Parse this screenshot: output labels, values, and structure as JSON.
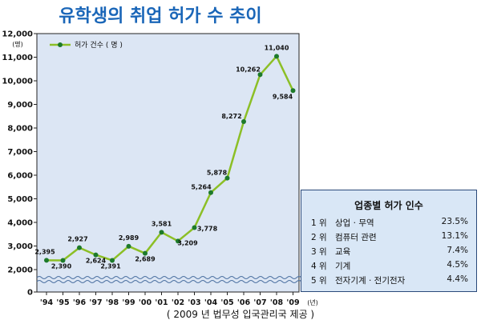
{
  "chart_data": {
    "type": "line",
    "title": "유학생의 취업 허가 수 추이",
    "y_unit": "(명)",
    "x_unit": "(년)",
    "ylim": [
      0,
      12000
    ],
    "yticks": [
      "0",
      "2,000",
      "3,000",
      "4,000",
      "5,000",
      "6,000",
      "7,000",
      "8,000",
      "9,000",
      "10,000",
      "11,000",
      "12,000"
    ],
    "categories": [
      "'94",
      "'95",
      "'96",
      "'97",
      "'98",
      "'99",
      "'00",
      "'01",
      "'02",
      "'03",
      "'04",
      "'05",
      "'06",
      "'07",
      "'08",
      "'09"
    ],
    "series": [
      {
        "name": "허가 건수 ( 명 )",
        "values": [
          2395,
          2390,
          2927,
          2624,
          2391,
          2989,
          2689,
          3581,
          3209,
          3778,
          5264,
          5878,
          8272,
          10262,
          11040,
          9584
        ],
        "labels": [
          "2,395",
          "2,390",
          "2,927",
          "2,624",
          "2,391",
          "2,989",
          "2,689",
          "3,581",
          "3,209",
          "3,778",
          "5,264",
          "5,878",
          "8,272",
          "10,262",
          "11,040",
          "9,584"
        ]
      }
    ],
    "grid": false,
    "legend": "top-left",
    "source": "( 2009 년 법무성 입국관리국 제공 )",
    "colors": {
      "line": "#8cbf26",
      "marker": "#1d7a2a",
      "plot_bg": "#dce6f4",
      "title": "#1a66b8"
    }
  },
  "ranking": {
    "title": "업종별 허가 인수",
    "rows": [
      {
        "rank": "1 위",
        "name": "상업 · 무역",
        "pct": "23.5%"
      },
      {
        "rank": "2 위",
        "name": "컴퓨터 관련",
        "pct": "13.1%"
      },
      {
        "rank": "3 위",
        "name": "교육",
        "pct": "7.4%"
      },
      {
        "rank": "4 위",
        "name": "기계",
        "pct": "4.5%"
      },
      {
        "rank": "5 위",
        "name": "전자기계 · 전기전자",
        "pct": "4.4%"
      }
    ]
  }
}
